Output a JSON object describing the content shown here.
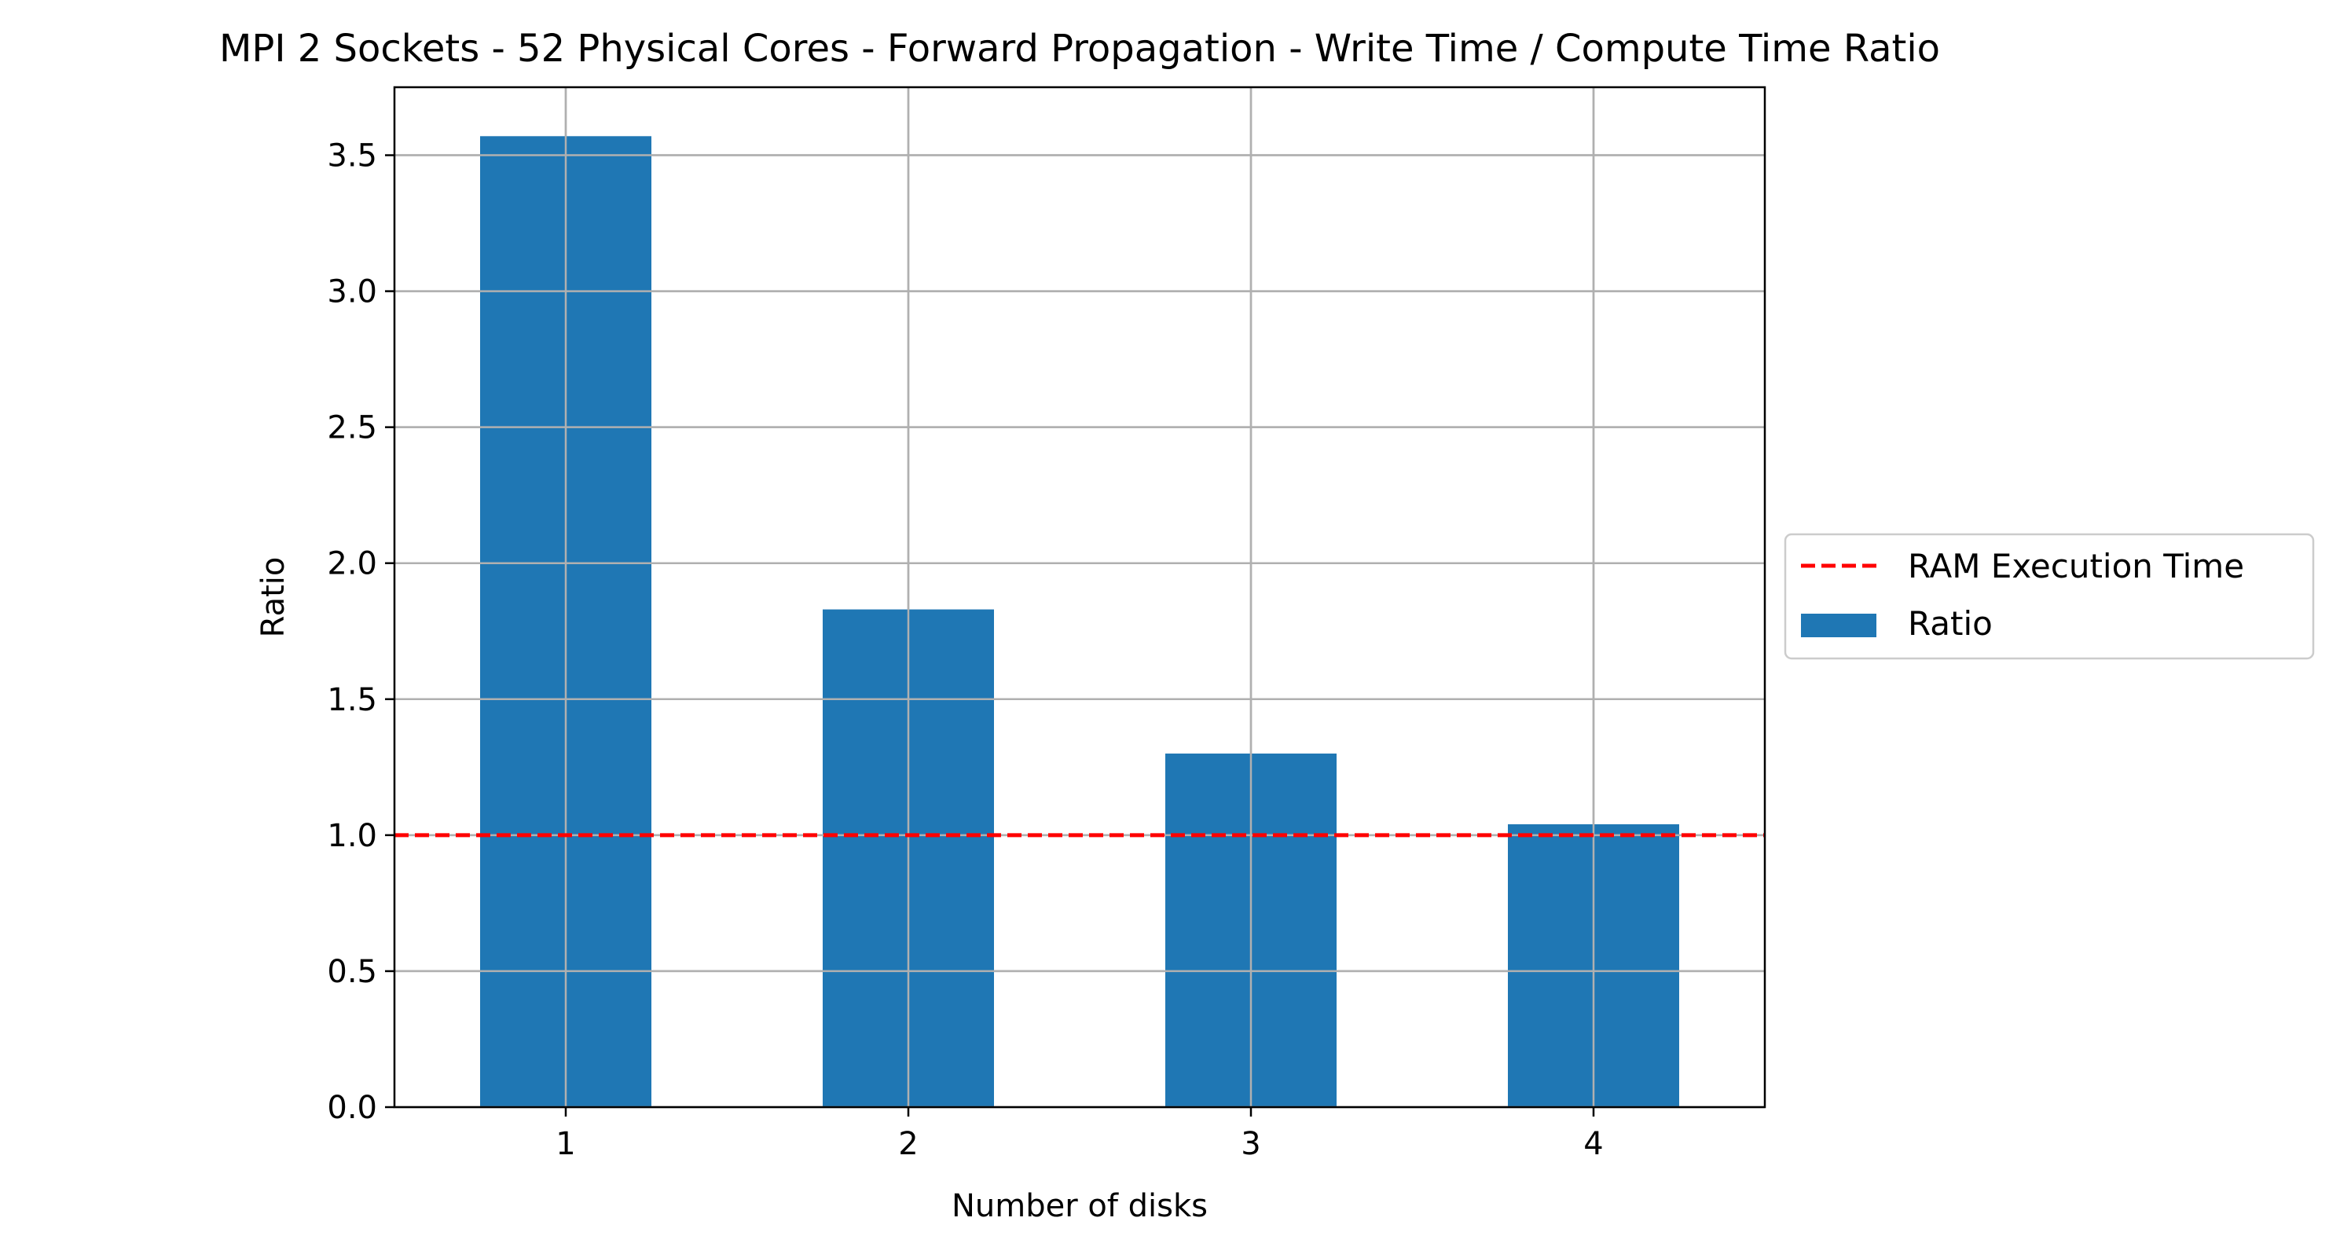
{
  "chart_data": {
    "type": "bar",
    "title": "MPI 2 Sockets - 52 Physical Cores - Forward Propagation - Write Time / Compute Time Ratio",
    "xlabel": "Number of disks",
    "ylabel": "Ratio",
    "categories": [
      "1",
      "2",
      "3",
      "4"
    ],
    "series": [
      {
        "name": "Ratio",
        "values": [
          3.57,
          1.83,
          1.3,
          1.04
        ],
        "color": "#1f77b4"
      }
    ],
    "reference_lines": [
      {
        "name": "RAM Execution Time",
        "y": 1.0,
        "color": "#ff0000",
        "style": "dashed"
      }
    ],
    "ylim": [
      0,
      3.75
    ],
    "yticks": [
      "0.0",
      "0.5",
      "1.0",
      "1.5",
      "2.0",
      "2.5",
      "3.0",
      "3.5"
    ],
    "ytick_values": [
      0.0,
      0.5,
      1.0,
      1.5,
      2.0,
      2.5,
      3.0,
      3.5
    ],
    "grid": true,
    "legend_position": "right"
  }
}
